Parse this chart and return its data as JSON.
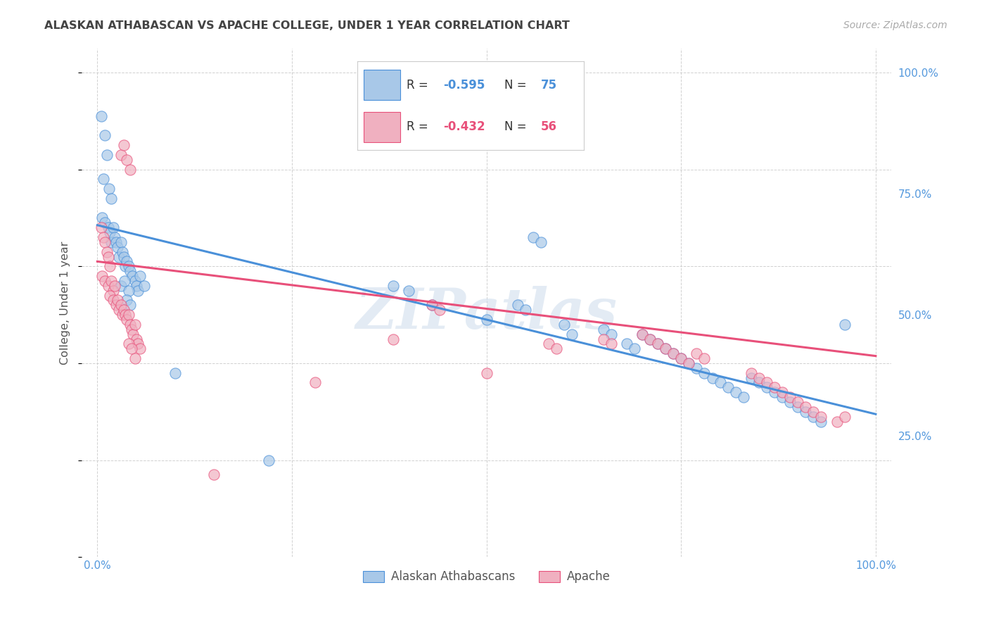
{
  "title": "ALASKAN ATHABASCAN VS APACHE COLLEGE, UNDER 1 YEAR CORRELATION CHART",
  "source": "Source: ZipAtlas.com",
  "ylabel": "College, Under 1 year",
  "watermark": "ZIPatlas",
  "blue_color": "#a8c8e8",
  "pink_color": "#f0b0c0",
  "line_blue": "#4a90d9",
  "line_pink": "#e8507a",
  "legend_text_color": "#4a90d9",
  "blue_line_x": [
    0.0,
    1.0
  ],
  "blue_line_y": [
    0.685,
    0.295
  ],
  "pink_line_x": [
    0.0,
    1.0
  ],
  "pink_line_y": [
    0.61,
    0.415
  ],
  "xlim": [
    -0.02,
    1.02
  ],
  "ylim": [
    0.0,
    1.05
  ],
  "grid_color": "#cccccc",
  "background_color": "#ffffff",
  "title_color": "#444444",
  "axis_label_color": "#555555",
  "right_tick_color": "#5599dd",
  "bottom_tick_color": "#5599dd",
  "blue_scatter": [
    [
      0.005,
      0.91
    ],
    [
      0.01,
      0.87
    ],
    [
      0.012,
      0.83
    ],
    [
      0.008,
      0.78
    ],
    [
      0.015,
      0.76
    ],
    [
      0.018,
      0.74
    ],
    [
      0.006,
      0.7
    ],
    [
      0.01,
      0.69
    ],
    [
      0.014,
      0.68
    ],
    [
      0.016,
      0.67
    ],
    [
      0.02,
      0.68
    ],
    [
      0.018,
      0.65
    ],
    [
      0.022,
      0.66
    ],
    [
      0.024,
      0.65
    ],
    [
      0.026,
      0.64
    ],
    [
      0.028,
      0.62
    ],
    [
      0.03,
      0.65
    ],
    [
      0.032,
      0.63
    ],
    [
      0.034,
      0.62
    ],
    [
      0.036,
      0.6
    ],
    [
      0.038,
      0.61
    ],
    [
      0.04,
      0.6
    ],
    [
      0.042,
      0.59
    ],
    [
      0.045,
      0.58
    ],
    [
      0.048,
      0.57
    ],
    [
      0.05,
      0.56
    ],
    [
      0.052,
      0.55
    ],
    [
      0.055,
      0.58
    ],
    [
      0.06,
      0.56
    ],
    [
      0.03,
      0.56
    ],
    [
      0.035,
      0.57
    ],
    [
      0.04,
      0.55
    ],
    [
      0.038,
      0.53
    ],
    [
      0.042,
      0.52
    ],
    [
      0.1,
      0.38
    ],
    [
      0.38,
      0.56
    ],
    [
      0.4,
      0.55
    ],
    [
      0.43,
      0.52
    ],
    [
      0.5,
      0.49
    ],
    [
      0.54,
      0.52
    ],
    [
      0.55,
      0.51
    ],
    [
      0.6,
      0.48
    ],
    [
      0.61,
      0.46
    ],
    [
      0.65,
      0.47
    ],
    [
      0.66,
      0.46
    ],
    [
      0.68,
      0.44
    ],
    [
      0.69,
      0.43
    ],
    [
      0.7,
      0.46
    ],
    [
      0.71,
      0.45
    ],
    [
      0.72,
      0.44
    ],
    [
      0.73,
      0.43
    ],
    [
      0.74,
      0.42
    ],
    [
      0.75,
      0.41
    ],
    [
      0.76,
      0.4
    ],
    [
      0.77,
      0.39
    ],
    [
      0.78,
      0.38
    ],
    [
      0.79,
      0.37
    ],
    [
      0.8,
      0.36
    ],
    [
      0.81,
      0.35
    ],
    [
      0.82,
      0.34
    ],
    [
      0.83,
      0.33
    ],
    [
      0.84,
      0.37
    ],
    [
      0.85,
      0.36
    ],
    [
      0.86,
      0.35
    ],
    [
      0.87,
      0.34
    ],
    [
      0.88,
      0.33
    ],
    [
      0.89,
      0.32
    ],
    [
      0.9,
      0.31
    ],
    [
      0.91,
      0.3
    ],
    [
      0.92,
      0.29
    ],
    [
      0.93,
      0.28
    ],
    [
      0.96,
      0.48
    ],
    [
      0.56,
      0.66
    ],
    [
      0.57,
      0.65
    ],
    [
      0.22,
      0.2
    ]
  ],
  "pink_scatter": [
    [
      0.005,
      0.68
    ],
    [
      0.008,
      0.66
    ],
    [
      0.01,
      0.65
    ],
    [
      0.012,
      0.63
    ],
    [
      0.014,
      0.62
    ],
    [
      0.016,
      0.6
    ],
    [
      0.006,
      0.58
    ],
    [
      0.01,
      0.57
    ],
    [
      0.014,
      0.56
    ],
    [
      0.018,
      0.57
    ],
    [
      0.02,
      0.55
    ],
    [
      0.022,
      0.56
    ],
    [
      0.016,
      0.54
    ],
    [
      0.02,
      0.53
    ],
    [
      0.024,
      0.52
    ],
    [
      0.026,
      0.53
    ],
    [
      0.028,
      0.51
    ],
    [
      0.03,
      0.52
    ],
    [
      0.032,
      0.5
    ],
    [
      0.034,
      0.51
    ],
    [
      0.036,
      0.5
    ],
    [
      0.038,
      0.49
    ],
    [
      0.04,
      0.5
    ],
    [
      0.042,
      0.48
    ],
    [
      0.044,
      0.47
    ],
    [
      0.046,
      0.46
    ],
    [
      0.048,
      0.48
    ],
    [
      0.05,
      0.45
    ],
    [
      0.052,
      0.44
    ],
    [
      0.055,
      0.43
    ],
    [
      0.03,
      0.83
    ],
    [
      0.034,
      0.85
    ],
    [
      0.038,
      0.82
    ],
    [
      0.042,
      0.8
    ],
    [
      0.04,
      0.44
    ],
    [
      0.044,
      0.43
    ],
    [
      0.048,
      0.41
    ],
    [
      0.28,
      0.36
    ],
    [
      0.38,
      0.45
    ],
    [
      0.43,
      0.52
    ],
    [
      0.44,
      0.51
    ],
    [
      0.5,
      0.38
    ],
    [
      0.58,
      0.44
    ],
    [
      0.59,
      0.43
    ],
    [
      0.65,
      0.45
    ],
    [
      0.66,
      0.44
    ],
    [
      0.7,
      0.46
    ],
    [
      0.71,
      0.45
    ],
    [
      0.72,
      0.44
    ],
    [
      0.73,
      0.43
    ],
    [
      0.74,
      0.42
    ],
    [
      0.75,
      0.41
    ],
    [
      0.76,
      0.4
    ],
    [
      0.77,
      0.42
    ],
    [
      0.78,
      0.41
    ],
    [
      0.84,
      0.38
    ],
    [
      0.85,
      0.37
    ],
    [
      0.86,
      0.36
    ],
    [
      0.87,
      0.35
    ],
    [
      0.88,
      0.34
    ],
    [
      0.89,
      0.33
    ],
    [
      0.9,
      0.32
    ],
    [
      0.91,
      0.31
    ],
    [
      0.92,
      0.3
    ],
    [
      0.93,
      0.29
    ],
    [
      0.95,
      0.28
    ],
    [
      0.96,
      0.29
    ],
    [
      0.15,
      0.17
    ]
  ]
}
